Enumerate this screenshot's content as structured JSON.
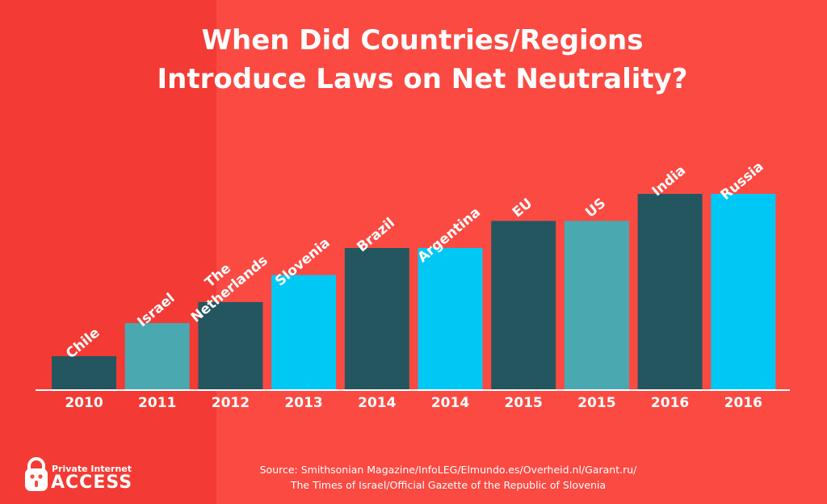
{
  "colors": {
    "background": "#fb4a42",
    "background_left": "#f43a34",
    "dark": "#245660",
    "teal": "#4aa8b1",
    "cyan": "#00c8f5",
    "text": "#ffffff"
  },
  "chart_data": {
    "type": "bar",
    "title": [
      "When Did Countries/Regions",
      "Introduce Laws on Net Neutrality?"
    ],
    "xlabel": "",
    "ylabel": "",
    "grid": false,
    "legend": "none",
    "bars": [
      {
        "label": [
          "Chile"
        ],
        "year": "2010",
        "value": 2010,
        "color": "dark"
      },
      {
        "label": [
          "Israel"
        ],
        "year": "2011",
        "value": 2011,
        "color": "teal"
      },
      {
        "label": [
          "The",
          "Netherlands"
        ],
        "year": "2012",
        "value": 2012,
        "color": "dark"
      },
      {
        "label": [
          "Slovenia"
        ],
        "year": "2013",
        "value": 2013,
        "color": "cyan"
      },
      {
        "label": [
          "Brazil"
        ],
        "year": "2014",
        "value": 2014,
        "color": "dark"
      },
      {
        "label": [
          "Argentina"
        ],
        "year": "2014",
        "value": 2014,
        "color": "cyan"
      },
      {
        "label": [
          "EU"
        ],
        "year": "2015",
        "value": 2015,
        "color": "dark"
      },
      {
        "label": [
          "US"
        ],
        "year": "2015",
        "value": 2015,
        "color": "teal"
      },
      {
        "label": [
          "India"
        ],
        "year": "2016",
        "value": 2016,
        "color": "dark"
      },
      {
        "label": [
          "Russia"
        ],
        "year": "2016",
        "value": 2016,
        "color": "cyan"
      }
    ]
  },
  "source": {
    "line1": "Source: Smithsonian Magazine/InfoLEG/Elmundo.es/Overheid.nl/Garant.ru/",
    "line2": "The Times of Israel/Official Gazette of the Republic of Slovenia"
  },
  "logo": {
    "small": "Private Internet",
    "big": "ACCESS",
    "icon": "padlock-robot-icon"
  }
}
